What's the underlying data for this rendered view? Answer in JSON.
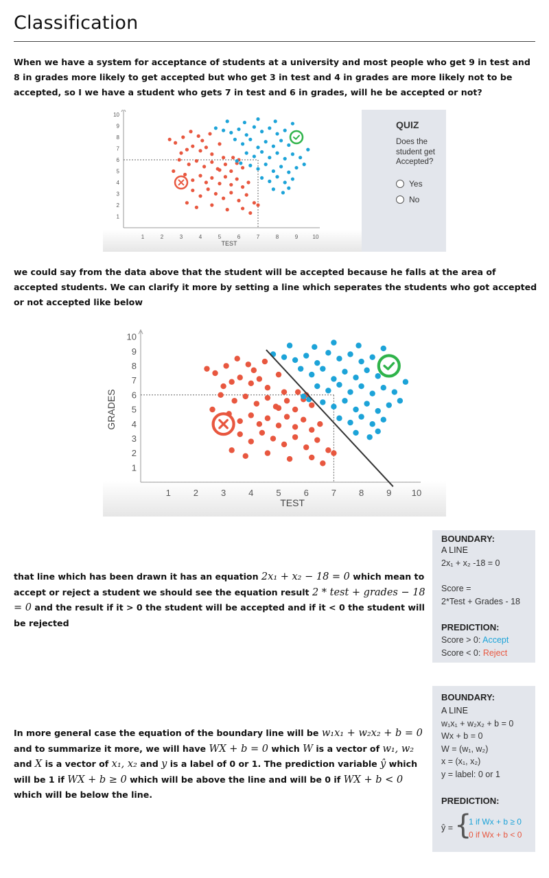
{
  "page": {
    "title": "Classification",
    "para1": "When we have a system for acceptance of students at a university and most people who get 9 in test and 8 in grades more likely to get accepted but who get 3 in test and 4 in grades are more likely not to be accepted, so I we have a student who gets 7 in test and 6 in grades, will he be accepted or not?",
    "para2": "we could say from the data above that the student will be accepted because he falls at the area of accepted students. We can clarify it more by setting a line which seperates the students who got accepted or not accepted like below",
    "para3": {
      "t1": "that line which has been drawn it has an equation ",
      "m1": "2x₁ + x₂ − 18 = 0",
      "t2": " which mean to accept or reject a student we should see the equation result ",
      "m2": "2 * test + grades − 18 = 0",
      "t3": " and the result if it > 0 the student will be accepted and if it < 0 the student will be rejected"
    },
    "para4": {
      "t1": "In more general case the equation of the boundary line will be ",
      "m1": "w₁x₁ + w₂x₂ + b = 0",
      "t2": " and to summarize it more, we will have ",
      "m2": "WX + b = 0",
      "t3": " which ",
      "m3": "W",
      "t4": " is a vector of ",
      "m4": "w₁, w₂",
      "t5": " and ",
      "m5": "X",
      "t6": " is a vector of ",
      "m6": "x₁, x₂",
      "t7": " and ",
      "m7": "y",
      "t8": " is a label of 0 or 1. The prediction variable ",
      "m8": "ŷ",
      "t9": " which will be 1 if ",
      "m9": "WX + b ≥ 0",
      "t10": " which will be above the line and will be 0 if ",
      "m10": "WX + b < 0",
      "t11": " which will be below the line."
    }
  },
  "quiz": {
    "title": "QUIZ",
    "question": "Does the student get Accepted?",
    "options": [
      "Yes",
      "No"
    ]
  },
  "box1": {
    "boundary": "BOUNDARY:",
    "a_line": "A LINE",
    "equation": "2x₁ + x₂ -18 = 0",
    "score_label": "Score =",
    "score_formula": "2*Test + Grades - 18",
    "prediction": "PREDICTION:",
    "rule_pos_prefix": "Score > 0: ",
    "rule_pos_word": "Accept",
    "rule_neg_prefix": "Score < 0: ",
    "rule_neg_word": "Reject"
  },
  "box2": {
    "boundary": "BOUNDARY:",
    "a_line": "A LINE",
    "eq1": "w₁x₁ + w₂x₂ + b = 0",
    "eq2": "Wx + b = 0",
    "w_def": "W = (w₁, w₂)",
    "x_def": "x = (x₁, x₂)",
    "y_def": "y = label: 0 or 1",
    "prediction": "PREDICTION:",
    "yhat": "ŷ =",
    "case1": "1 if Wx + b ≥ 0",
    "case0": "0 if Wx + b < 0"
  },
  "colors": {
    "accepted": "#1ca3d8",
    "rejected": "#e8573f",
    "check": "#2fb34a",
    "box_bg": "#e3e6ec"
  },
  "chart_data": [
    {
      "type": "scatter",
      "xlabel": "TEST",
      "ylabel": "GRADES",
      "xticks": [
        "1",
        "2",
        "3",
        "4",
        "5",
        "6",
        "7",
        "8",
        "9",
        "10"
      ],
      "yticks": [
        "1",
        "2",
        "3",
        "4",
        "5",
        "6",
        "7",
        "8",
        "9",
        "10"
      ],
      "xlim": [
        0,
        10
      ],
      "ylim": [
        0,
        10
      ],
      "series": [
        {
          "name": "",
          "color": "#e8573f",
          "points": [
            [
              2.4,
              7.8
            ],
            [
              2.7,
              7.5
            ],
            [
              3.1,
              8.0
            ],
            [
              3.5,
              8.5
            ],
            [
              3.9,
              8.1
            ],
            [
              4.1,
              7.7
            ],
            [
              4.5,
              8.3
            ],
            [
              3.0,
              6.6
            ],
            [
              3.3,
              6.9
            ],
            [
              3.6,
              7.2
            ],
            [
              4.0,
              6.8
            ],
            [
              4.3,
              7.1
            ],
            [
              4.6,
              6.5
            ],
            [
              5.0,
              7.4
            ],
            [
              5.2,
              6.2
            ],
            [
              2.9,
              6.0
            ],
            [
              3.4,
              5.6
            ],
            [
              3.8,
              5.9
            ],
            [
              4.2,
              5.4
            ],
            [
              4.6,
              5.8
            ],
            [
              4.9,
              5.2
            ],
            [
              5.3,
              5.6
            ],
            [
              5.6,
              5.0
            ],
            [
              5.9,
              5.7
            ],
            [
              6.2,
              5.3
            ],
            [
              3.2,
              4.7
            ],
            [
              3.6,
              4.2
            ],
            [
              4.0,
              4.6
            ],
            [
              4.3,
              4.0
            ],
            [
              4.6,
              4.4
            ],
            [
              5.0,
              3.9
            ],
            [
              5.3,
              4.5
            ],
            [
              5.6,
              3.8
            ],
            [
              5.9,
              4.3
            ],
            [
              6.2,
              3.6
            ],
            [
              6.5,
              4.0
            ],
            [
              3.6,
              3.3
            ],
            [
              4.0,
              2.8
            ],
            [
              4.4,
              3.4
            ],
            [
              4.8,
              3.0
            ],
            [
              5.2,
              2.6
            ],
            [
              5.6,
              3.1
            ],
            [
              6.0,
              2.4
            ],
            [
              6.4,
              2.9
            ],
            [
              6.8,
              2.2
            ],
            [
              3.3,
              2.2
            ],
            [
              3.8,
              1.8
            ],
            [
              4.6,
              2.0
            ],
            [
              5.4,
              1.6
            ],
            [
              6.2,
              1.7
            ],
            [
              6.6,
              1.3
            ],
            [
              7.0,
              2.0
            ],
            [
              2.6,
              5.0
            ],
            [
              5.0,
              5.1
            ],
            [
              5.7,
              6.2
            ],
            [
              6.0,
              6.0
            ]
          ]
        },
        {
          "name": "",
          "color": "#1ca3d8",
          "points": [
            [
              4.8,
              8.8
            ],
            [
              5.2,
              8.6
            ],
            [
              5.6,
              8.4
            ],
            [
              6.0,
              8.7
            ],
            [
              6.4,
              8.2
            ],
            [
              6.8,
              8.9
            ],
            [
              7.2,
              8.5
            ],
            [
              7.6,
              8.8
            ],
            [
              8.0,
              8.3
            ],
            [
              8.4,
              8.6
            ],
            [
              5.4,
              9.4
            ],
            [
              6.3,
              9.3
            ],
            [
              7.0,
              9.6
            ],
            [
              7.9,
              9.4
            ],
            [
              8.8,
              9.2
            ],
            [
              5.8,
              7.8
            ],
            [
              6.2,
              7.4
            ],
            [
              6.6,
              7.8
            ],
            [
              7.0,
              7.1
            ],
            [
              7.4,
              7.6
            ],
            [
              7.8,
              7.2
            ],
            [
              8.2,
              7.7
            ],
            [
              8.6,
              7.3
            ],
            [
              9.0,
              7.9
            ],
            [
              6.4,
              6.6
            ],
            [
              6.8,
              6.3
            ],
            [
              7.2,
              6.7
            ],
            [
              7.6,
              6.2
            ],
            [
              8.0,
              6.6
            ],
            [
              8.4,
              6.1
            ],
            [
              8.8,
              6.5
            ],
            [
              9.2,
              6.2
            ],
            [
              6.6,
              5.5
            ],
            [
              7.0,
              5.2
            ],
            [
              7.4,
              5.6
            ],
            [
              7.8,
              5.0
            ],
            [
              8.2,
              5.4
            ],
            [
              8.6,
              4.9
            ],
            [
              9.0,
              5.3
            ],
            [
              7.2,
              4.4
            ],
            [
              7.6,
              4.1
            ],
            [
              8.0,
              4.5
            ],
            [
              8.4,
              4.0
            ],
            [
              8.8,
              4.3
            ],
            [
              7.8,
              3.4
            ],
            [
              8.3,
              3.1
            ],
            [
              8.6,
              3.5
            ],
            [
              9.4,
              5.6
            ],
            [
              9.6,
              6.9
            ],
            [
              5.9,
              5.9
            ],
            [
              6.1,
              5.7
            ]
          ]
        },
        {
          "name": "",
          "color": "#e8573f",
          "points": [
            [
              3,
              4
            ]
          ]
        },
        {
          "name": "",
          "color": "#2fb34a",
          "points": [
            [
              9,
              8
            ]
          ]
        }
      ],
      "guide_point": [
        7,
        6
      ],
      "boundary_line": null
    },
    {
      "type": "scatter",
      "xlabel": "TEST",
      "ylabel": "GRADES",
      "xticks": [
        "1",
        "2",
        "3",
        "4",
        "5",
        "6",
        "7",
        "8",
        "9",
        "10"
      ],
      "yticks": [
        "1",
        "2",
        "3",
        "4",
        "5",
        "6",
        "7",
        "8",
        "9",
        "10"
      ],
      "xlim": [
        0,
        10
      ],
      "ylim": [
        0,
        10
      ],
      "series": "same as first chart",
      "guide_point": [
        7,
        6
      ],
      "boundary_line": {
        "equation": "2x₁ + x₂ - 18 = 0",
        "from": [
          4.55,
          9.1
        ],
        "to": [
          9.15,
          -0.3
        ]
      }
    }
  ]
}
